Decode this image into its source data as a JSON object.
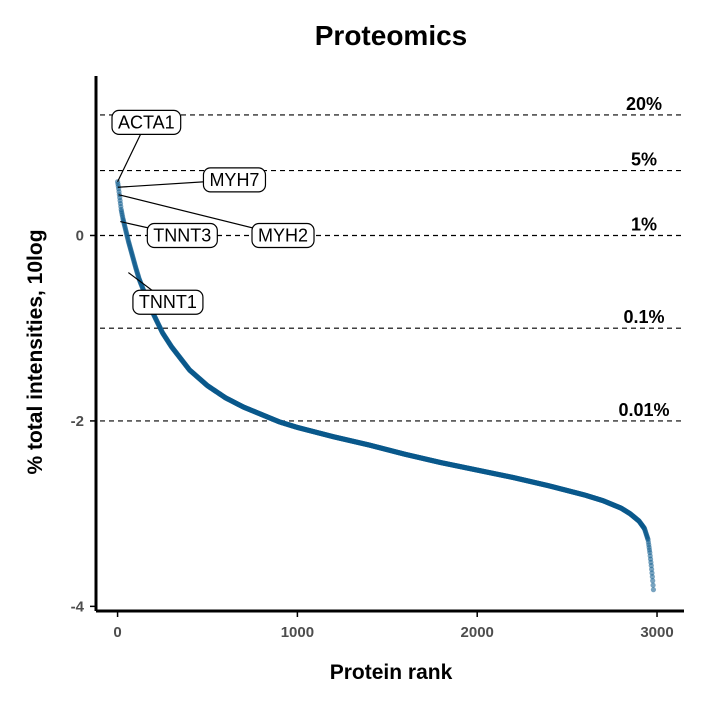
{
  "chart_data": {
    "type": "scatter",
    "title": "Proteomics",
    "xlabel": "Protein rank",
    "ylabel": "% total intensities, 10log",
    "xlim": [
      -120,
      3150
    ],
    "ylim": [
      -4.05,
      1.72
    ],
    "x_ticks": [
      {
        "value": 0,
        "label": "0"
      },
      {
        "value": 1000,
        "label": "1000"
      },
      {
        "value": 2000,
        "label": "2000"
      },
      {
        "value": 3000,
        "label": "3000"
      }
    ],
    "y_ticks": [
      {
        "value": 0,
        "label": "0"
      },
      {
        "value": -2,
        "label": "-2"
      },
      {
        "value": -4,
        "label": "-4"
      }
    ],
    "grid": false,
    "legend": "none",
    "point_color": "#0b5a8c",
    "curve_anchors": [
      [
        0,
        0.58
      ],
      [
        5,
        0.52
      ],
      [
        10,
        0.44
      ],
      [
        15,
        0.36
      ],
      [
        20,
        0.28
      ],
      [
        30,
        0.18
      ],
      [
        40,
        0.1
      ],
      [
        50,
        0.02
      ],
      [
        60,
        -0.06
      ],
      [
        80,
        -0.2
      ],
      [
        100,
        -0.34
      ],
      [
        120,
        -0.47
      ],
      [
        150,
        -0.62
      ],
      [
        200,
        -0.85
      ],
      [
        250,
        -1.05
      ],
      [
        300,
        -1.2
      ],
      [
        400,
        -1.45
      ],
      [
        500,
        -1.62
      ],
      [
        600,
        -1.75
      ],
      [
        700,
        -1.85
      ],
      [
        800,
        -1.93
      ],
      [
        900,
        -2.01
      ],
      [
        1000,
        -2.07
      ],
      [
        1200,
        -2.17
      ],
      [
        1400,
        -2.26
      ],
      [
        1600,
        -2.36
      ],
      [
        1800,
        -2.45
      ],
      [
        2000,
        -2.53
      ],
      [
        2200,
        -2.61
      ],
      [
        2400,
        -2.7
      ],
      [
        2600,
        -2.8
      ],
      [
        2700,
        -2.86
      ],
      [
        2800,
        -2.94
      ],
      [
        2850,
        -3.0
      ],
      [
        2900,
        -3.08
      ],
      [
        2930,
        -3.16
      ],
      [
        2950,
        -3.28
      ],
      [
        2960,
        -3.42
      ],
      [
        2968,
        -3.56
      ],
      [
        2975,
        -3.7
      ],
      [
        2980,
        -3.82
      ]
    ],
    "reference_lines": [
      {
        "y": 1.3,
        "label": "20%"
      },
      {
        "y": 0.7,
        "label": "5%"
      },
      {
        "y": 0,
        "label": "1%"
      },
      {
        "y": -1,
        "label": "0.1%"
      },
      {
        "y": -2,
        "label": "0.01%"
      }
    ],
    "labeled_points": [
      {
        "name": "ACTA1",
        "x": 0,
        "y": 0.58,
        "label_x": 160,
        "label_y": 1.22
      },
      {
        "name": "MYH7",
        "x": 2,
        "y": 0.52,
        "label_x": 650,
        "label_y": 0.6
      },
      {
        "name": "MYH2",
        "x": 5,
        "y": 0.44,
        "label_x": 920,
        "label_y": 0.0
      },
      {
        "name": "TNNT3",
        "x": 15,
        "y": 0.15,
        "label_x": 360,
        "label_y": 0.0
      },
      {
        "name": "TNNT1",
        "x": 60,
        "y": -0.4,
        "label_x": 280,
        "label_y": -0.72
      }
    ]
  }
}
